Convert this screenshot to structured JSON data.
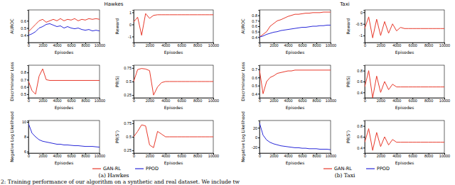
{
  "groups": [
    {
      "title": "Hawkes",
      "caption": "(a) Hawkes"
    },
    {
      "title": "Taxi",
      "caption": "(b) Taxi"
    }
  ],
  "figure_caption": "2: Training performance of our algorithm on a synthetic and real dataset. We include tw",
  "chart_data": [
    {
      "type": "line",
      "x_label": "Episodes",
      "y_label": "AUROC",
      "legend": "bottom",
      "x": [
        0,
        500,
        1000,
        1500,
        2000,
        2500,
        3000,
        3500,
        4000,
        4500,
        5000,
        5500,
        6000,
        6500,
        7000,
        7500,
        8000,
        8500,
        9000,
        9500,
        10000
      ],
      "xlim": [
        0,
        10000
      ],
      "xticks": [
        0,
        2000,
        4000,
        6000,
        8000,
        10000
      ],
      "ylim": [
        0.3,
        0.75
      ],
      "yticks": [
        0.4,
        0.5,
        0.6
      ],
      "series": [
        {
          "name": "GAN-RL",
          "color": "#e8392b",
          "values": [
            0.45,
            0.5,
            0.55,
            0.6,
            0.62,
            0.58,
            0.6,
            0.62,
            0.6,
            0.63,
            0.6,
            0.62,
            0.61,
            0.63,
            0.6,
            0.62,
            0.61,
            0.63,
            0.62,
            0.63,
            0.62
          ]
        },
        {
          "name": "PPOD",
          "color": "#2929d9",
          "values": [
            0.4,
            0.42,
            0.45,
            0.5,
            0.52,
            0.55,
            0.56,
            0.54,
            0.52,
            0.53,
            0.5,
            0.52,
            0.5,
            0.49,
            0.5,
            0.48,
            0.47,
            0.48,
            0.46,
            0.47,
            0.46
          ]
        }
      ]
    },
    {
      "type": "line",
      "x_label": "Episodes",
      "y_label": "Reward",
      "x": [
        0,
        500,
        1000,
        1500,
        2000,
        2500,
        3000,
        3500,
        4000,
        4500,
        5000,
        5500,
        6000,
        6500,
        7000,
        7500,
        8000,
        8500,
        9000,
        9500,
        10000
      ],
      "xlim": [
        0,
        10000
      ],
      "xticks": [
        0,
        2000,
        4000,
        6000,
        8000,
        10000
      ],
      "ylim": [
        -1.5,
        1.2
      ],
      "yticks": [
        -1,
        0,
        1
      ],
      "series": [
        {
          "name": "GAN-RL",
          "color": "#e8392b",
          "values": [
            0.2,
            0.6,
            -0.9,
            0.9,
            0.5,
            0.75,
            0.8,
            0.8,
            0.8,
            0.8,
            0.8,
            0.8,
            0.8,
            0.8,
            0.8,
            0.8,
            0.8,
            0.8,
            0.8,
            0.8,
            0.8
          ]
        }
      ]
    },
    {
      "type": "line",
      "x_label": "Episodes",
      "y_label": "Discriminator Loss",
      "x": [
        0,
        500,
        1000,
        1500,
        2000,
        2500,
        3000,
        3500,
        4000,
        4500,
        5000,
        5500,
        6000,
        6500,
        7000,
        7500,
        8000,
        8500,
        9000,
        9500,
        10000
      ],
      "xlim": [
        0,
        10000
      ],
      "xticks": [
        0,
        2000,
        4000,
        6000,
        8000,
        10000
      ],
      "ylim": [
        0.45,
        0.9
      ],
      "yticks": [
        0.5,
        0.6,
        0.7,
        0.8
      ],
      "series": [
        {
          "name": "GAN-RL",
          "color": "#e8392b",
          "values": [
            0.68,
            0.55,
            0.5,
            0.75,
            0.85,
            0.7,
            0.69,
            0.69,
            0.69,
            0.69,
            0.69,
            0.69,
            0.69,
            0.69,
            0.69,
            0.69,
            0.69,
            0.69,
            0.69,
            0.69,
            0.69
          ]
        }
      ]
    },
    {
      "type": "line",
      "x_label": "Episodes",
      "y_label": "Pθ(S)",
      "x": [
        0,
        500,
        1000,
        1500,
        2000,
        2500,
        3000,
        3500,
        4000,
        4500,
        5000,
        5500,
        6000,
        6500,
        7000,
        7500,
        8000,
        8500,
        9000,
        9500,
        10000
      ],
      "xlim": [
        0,
        10000
      ],
      "xticks": [
        0,
        2000,
        4000,
        6000,
        8000,
        10000
      ],
      "ylim": [
        0.2,
        0.8
      ],
      "yticks": [
        0.25,
        0.5,
        0.75
      ],
      "series": [
        {
          "name": "GAN-RL",
          "color": "#e8392b",
          "values": [
            0.5,
            0.72,
            0.74,
            0.73,
            0.7,
            0.25,
            0.4,
            0.48,
            0.5,
            0.5,
            0.5,
            0.5,
            0.5,
            0.5,
            0.5,
            0.5,
            0.5,
            0.5,
            0.5,
            0.5,
            0.5
          ]
        }
      ]
    },
    {
      "type": "line",
      "x_label": "Episodes",
      "y_label": "Negative Log Likelihood",
      "x": [
        0,
        500,
        1000,
        1500,
        2000,
        2500,
        3000,
        3500,
        4000,
        4500,
        5000,
        5500,
        6000,
        6500,
        7000,
        7500,
        8000,
        8500,
        9000,
        9500,
        10000
      ],
      "xlim": [
        0,
        10000
      ],
      "xticks": [
        0,
        2000,
        4000,
        6000,
        8000,
        10000
      ],
      "ylim": [
        5.8,
        10.2
      ],
      "yticks": [
        6,
        8,
        10
      ],
      "series": [
        {
          "name": "PPOD",
          "color": "#2929d9",
          "values": [
            9.8,
            8.5,
            8.0,
            7.6,
            7.4,
            7.3,
            7.2,
            7.1,
            7.0,
            7.0,
            6.9,
            6.9,
            6.85,
            6.8,
            6.8,
            6.75,
            6.7,
            6.7,
            6.7,
            6.65,
            6.6
          ]
        }
      ]
    },
    {
      "type": "line",
      "x_label": "Episodes",
      "y_label": "Pθ(Sᵀ)",
      "x": [
        0,
        500,
        1000,
        1500,
        2000,
        2500,
        3000,
        3500,
        4000,
        4500,
        5000,
        5500,
        6000,
        6500,
        7000,
        7500,
        8000,
        8500,
        9000,
        9500,
        10000
      ],
      "xlim": [
        0,
        10000
      ],
      "xticks": [
        0,
        2000,
        4000,
        6000,
        8000,
        10000
      ],
      "ylim": [
        0.2,
        0.8
      ],
      "yticks": [
        0.25,
        0.5,
        0.75
      ],
      "series": [
        {
          "name": "GAN-RL",
          "color": "#e8392b",
          "values": [
            0.5,
            0.6,
            0.72,
            0.7,
            0.35,
            0.3,
            0.6,
            0.55,
            0.5,
            0.5,
            0.5,
            0.5,
            0.5,
            0.5,
            0.5,
            0.5,
            0.5,
            0.5,
            0.5,
            0.5,
            0.5
          ]
        }
      ]
    },
    {
      "type": "line",
      "x_label": "Episodes",
      "y_label": "AUROC",
      "legend": "bottom",
      "x": [
        0,
        500,
        1000,
        1500,
        2000,
        2500,
        3000,
        3500,
        4000,
        4500,
        5000,
        5500,
        6000,
        6500,
        7000,
        7500,
        8000,
        8500,
        9000,
        9500,
        10000
      ],
      "xlim": [
        0,
        10000
      ],
      "xticks": [
        0,
        2000,
        4000,
        6000,
        8000,
        10000
      ],
      "ylim": [
        0.3,
        0.9
      ],
      "yticks": [
        0.4,
        0.5,
        0.6,
        0.7,
        0.8
      ],
      "series": [
        {
          "name": "GAN-RL",
          "color": "#e8392b",
          "values": [
            0.4,
            0.45,
            0.5,
            0.6,
            0.65,
            0.7,
            0.72,
            0.75,
            0.78,
            0.8,
            0.82,
            0.82,
            0.83,
            0.84,
            0.84,
            0.85,
            0.85,
            0.85,
            0.86,
            0.86,
            0.86
          ]
        },
        {
          "name": "PPOD",
          "color": "#2929d9",
          "values": [
            0.4,
            0.42,
            0.45,
            0.47,
            0.49,
            0.5,
            0.52,
            0.53,
            0.54,
            0.55,
            0.56,
            0.57,
            0.58,
            0.58,
            0.59,
            0.6,
            0.6,
            0.61,
            0.61,
            0.62,
            0.62
          ]
        }
      ]
    },
    {
      "type": "line",
      "x_label": "Episodes",
      "y_label": "Reward",
      "x": [
        0,
        500,
        1000,
        1500,
        2000,
        2500,
        3000,
        3500,
        4000,
        4500,
        5000,
        5500,
        6000,
        6500,
        7000,
        7500,
        8000,
        8500,
        9000,
        9500,
        10000
      ],
      "xlim": [
        0,
        10000
      ],
      "xticks": [
        0,
        2000,
        4000,
        6000,
        8000,
        10000
      ],
      "ylim": [
        -1.3,
        0.1
      ],
      "yticks": [
        -1,
        -0.5,
        0
      ],
      "series": [
        {
          "name": "GAN-RL",
          "color": "#e8392b",
          "values": [
            -0.7,
            -0.2,
            -1.1,
            -0.3,
            -1.0,
            -0.4,
            -0.9,
            -0.5,
            -0.8,
            -0.65,
            -0.7,
            -0.7,
            -0.7,
            -0.7,
            -0.7,
            -0.7,
            -0.7,
            -0.7,
            -0.7,
            -0.7,
            -0.7
          ]
        }
      ]
    },
    {
      "type": "line",
      "x_label": "Episodes",
      "y_label": "Discriminator Loss",
      "x": [
        0,
        500,
        1000,
        1500,
        2000,
        2500,
        3000,
        3500,
        4000,
        4500,
        5000,
        5500,
        6000,
        6500,
        7000,
        7500,
        8000,
        8500,
        9000,
        9500,
        10000
      ],
      "xlim": [
        0,
        10000
      ],
      "xticks": [
        0,
        2000,
        4000,
        6000,
        8000,
        10000
      ],
      "ylim": [
        0.35,
        0.75
      ],
      "yticks": [
        0.4,
        0.5,
        0.6,
        0.7
      ],
      "series": [
        {
          "name": "GAN-RL",
          "color": "#e8392b",
          "values": [
            0.69,
            0.4,
            0.55,
            0.6,
            0.62,
            0.65,
            0.66,
            0.67,
            0.68,
            0.68,
            0.69,
            0.69,
            0.69,
            0.69,
            0.69,
            0.69,
            0.69,
            0.69,
            0.69,
            0.69,
            0.69
          ]
        }
      ]
    },
    {
      "type": "line",
      "x_label": "Episodes",
      "y_label": "Pθ(S)",
      "x": [
        0,
        500,
        1000,
        1500,
        2000,
        2500,
        3000,
        3500,
        4000,
        4500,
        5000,
        5500,
        6000,
        6500,
        7000,
        7500,
        8000,
        8500,
        9000,
        9500,
        10000
      ],
      "xlim": [
        0,
        10000
      ],
      "xticks": [
        0,
        2000,
        4000,
        6000,
        8000,
        10000
      ],
      "ylim": [
        0.3,
        0.9
      ],
      "yticks": [
        0.4,
        0.6,
        0.8
      ],
      "series": [
        {
          "name": "GAN-RL",
          "color": "#e8392b",
          "values": [
            0.5,
            0.8,
            0.3,
            0.7,
            0.4,
            0.6,
            0.45,
            0.55,
            0.5,
            0.5,
            0.5,
            0.5,
            0.5,
            0.5,
            0.5,
            0.5,
            0.5,
            0.5,
            0.5,
            0.5,
            0.5
          ]
        }
      ]
    },
    {
      "type": "line",
      "x_label": "Episodes",
      "y_label": "Negative Log Likelihood",
      "x": [
        0,
        500,
        1000,
        1500,
        2000,
        2500,
        3000,
        3500,
        4000,
        4500,
        5000,
        5500,
        6000,
        6500,
        7000,
        7500,
        8000,
        8500,
        9000,
        9500,
        10000
      ],
      "xlim": [
        0,
        10000
      ],
      "xticks": [
        0,
        2000,
        4000,
        6000,
        8000,
        10000
      ],
      "ylim": [
        -32,
        35
      ],
      "yticks": [
        -20,
        0,
        20
      ],
      "series": [
        {
          "name": "PPOD",
          "color": "#2929d9",
          "values": [
            30,
            5,
            -5,
            -10,
            -13,
            -15,
            -17,
            -18,
            -19,
            -20,
            -21,
            -21,
            -22,
            -22,
            -23,
            -23,
            -23,
            -24,
            -24,
            -24,
            -25
          ]
        }
      ]
    },
    {
      "type": "line",
      "x_label": "Episodes",
      "y_label": "Pθ(Sᵀ)",
      "x": [
        0,
        500,
        1000,
        1500,
        2000,
        2500,
        3000,
        3500,
        4000,
        4500,
        5000,
        5500,
        6000,
        6500,
        7000,
        7500,
        8000,
        8500,
        9000,
        9500,
        10000
      ],
      "xlim": [
        0,
        10000
      ],
      "xticks": [
        0,
        2000,
        4000,
        6000,
        8000,
        10000
      ],
      "ylim": [
        0.3,
        0.9
      ],
      "yticks": [
        0.4,
        0.6,
        0.8
      ],
      "series": [
        {
          "name": "GAN-RL",
          "color": "#e8392b",
          "values": [
            0.5,
            0.75,
            0.35,
            0.68,
            0.42,
            0.6,
            0.45,
            0.55,
            0.5,
            0.5,
            0.5,
            0.5,
            0.5,
            0.5,
            0.5,
            0.5,
            0.5,
            0.5,
            0.5,
            0.5,
            0.5
          ]
        }
      ]
    }
  ]
}
